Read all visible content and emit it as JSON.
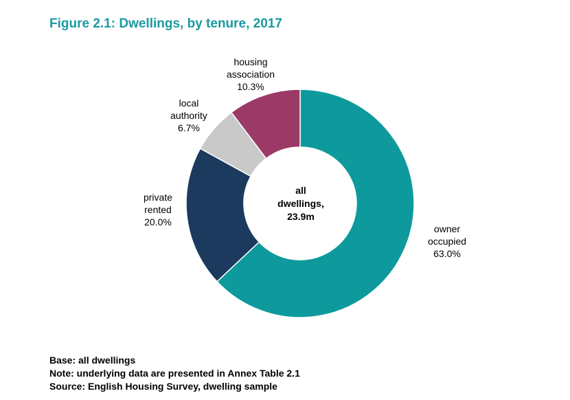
{
  "title": "Figure 2.1: Dwellings, by tenure, 2017",
  "chart_data": {
    "type": "pie",
    "donut": true,
    "center_label": [
      "all",
      "dwellings,",
      "23.9m"
    ],
    "slices": [
      {
        "label": [
          "owner",
          "occupied"
        ],
        "value": 63.0,
        "display": "63.0%",
        "color": "#0e9a9c"
      },
      {
        "label": [
          "private",
          "rented"
        ],
        "value": 20.0,
        "display": "20.0%",
        "color": "#1b3a5e"
      },
      {
        "label": [
          "local",
          "authority"
        ],
        "value": 6.7,
        "display": "6.7%",
        "color": "#c9c9c9"
      },
      {
        "label": [
          "housing",
          "association"
        ],
        "value": 10.3,
        "display": "10.3%",
        "color": "#9b3a66"
      }
    ]
  },
  "footer": {
    "base": "Base: all dwellings",
    "note": "Note: underlying data are presented in Annex Table 2.1",
    "source": "Source: English Housing Survey, dwelling sample"
  }
}
